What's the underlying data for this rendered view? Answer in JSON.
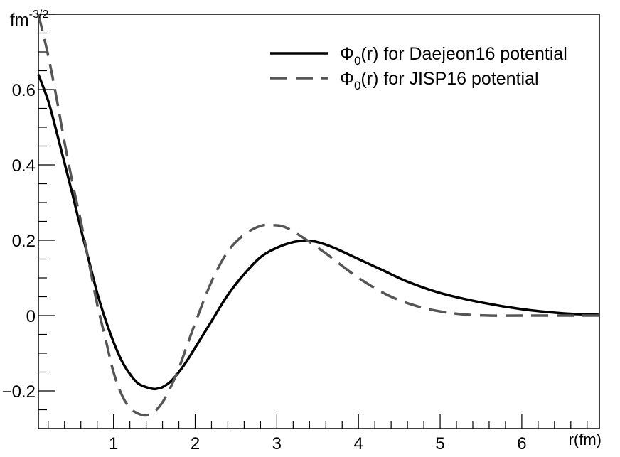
{
  "chart_data": {
    "type": "line",
    "xlabel": "r(fm)",
    "ylabel": "fm-3/2",
    "ylabel_base": "fm",
    "ylabel_exp": "-3/2",
    "xlim": [
      0.08,
      6.95
    ],
    "ylim": [
      -0.3,
      0.8
    ],
    "x_ticks": [
      1,
      2,
      3,
      4,
      5,
      6
    ],
    "x_tick_labels": [
      "1",
      "2",
      "3",
      "4",
      "5",
      "6"
    ],
    "y_ticks": [
      -0.2,
      0,
      0.2,
      0.4,
      0.6
    ],
    "y_tick_labels": [
      "−0.2",
      "0",
      "0.2",
      "0.4",
      "0.6"
    ],
    "grid": false,
    "legend_position": "top-right",
    "series": [
      {
        "name": "Φ0(r) for Daejeon16 potential",
        "name_symbol": "Φ",
        "name_sub": "0",
        "name_rest": "(r) for Daejeon16 potential",
        "color": "#000000",
        "dash": "solid",
        "x": [
          0.08,
          0.2,
          0.3,
          0.4,
          0.5,
          0.6,
          0.7,
          0.8,
          0.9,
          1.0,
          1.1,
          1.2,
          1.3,
          1.4,
          1.5,
          1.55,
          1.6,
          1.7,
          1.8,
          1.9,
          2.0,
          2.2,
          2.4,
          2.6,
          2.8,
          3.0,
          3.2,
          3.35,
          3.5,
          3.7,
          4.0,
          4.3,
          4.6,
          5.0,
          5.5,
          6.0,
          6.5,
          6.95
        ],
        "y": [
          0.64,
          0.57,
          0.49,
          0.405,
          0.32,
          0.23,
          0.145,
          0.06,
          -0.01,
          -0.07,
          -0.12,
          -0.155,
          -0.18,
          -0.19,
          -0.195,
          -0.193,
          -0.19,
          -0.175,
          -0.15,
          -0.12,
          -0.085,
          -0.015,
          0.055,
          0.11,
          0.155,
          0.18,
          0.195,
          0.198,
          0.195,
          0.18,
          0.15,
          0.12,
          0.09,
          0.06,
          0.035,
          0.017,
          0.006,
          0.002
        ]
      },
      {
        "name": "Φ0(r) for JISP16 potential",
        "name_symbol": "Φ",
        "name_sub": "0",
        "name_rest": "(r) for JISP16 potential",
        "color": "#555555",
        "dash": "dashed",
        "x": [
          0.08,
          0.2,
          0.3,
          0.4,
          0.5,
          0.6,
          0.7,
          0.8,
          0.9,
          1.0,
          1.1,
          1.2,
          1.3,
          1.4,
          1.5,
          1.6,
          1.7,
          1.8,
          1.9,
          2.0,
          2.2,
          2.4,
          2.6,
          2.8,
          2.95,
          3.1,
          3.3,
          3.6,
          4.0,
          4.4,
          4.8,
          5.2,
          5.6,
          6.0,
          6.5,
          6.95
        ],
        "y": [
          0.8,
          0.69,
          0.58,
          0.46,
          0.35,
          0.25,
          0.14,
          0.03,
          -0.06,
          -0.15,
          -0.21,
          -0.245,
          -0.26,
          -0.265,
          -0.255,
          -0.23,
          -0.19,
          -0.14,
          -0.08,
          -0.02,
          0.09,
          0.17,
          0.215,
          0.238,
          0.24,
          0.235,
          0.21,
          0.165,
          0.1,
          0.05,
          0.02,
          0.005,
          0.0,
          0.0,
          0.0,
          0.0
        ]
      }
    ]
  }
}
